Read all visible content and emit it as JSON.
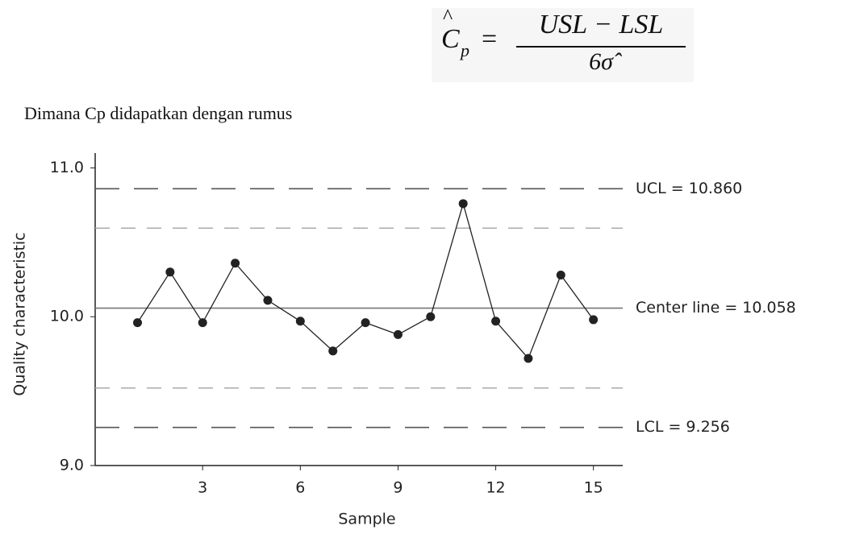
{
  "text": "Dimana Cp didapatkan dengan rumus",
  "formula": {
    "lhs": "C",
    "lhs_hat": "^",
    "lhs_sub": "p",
    "equals": "=",
    "numerator": "USL − LSL",
    "denominator": "6σ̂"
  },
  "chart_data": {
    "type": "control",
    "xlabel": "Sample",
    "ylabel": "Quality characteristic",
    "x": [
      1,
      2,
      3,
      4,
      5,
      6,
      7,
      8,
      9,
      10,
      11,
      12,
      13,
      14,
      15
    ],
    "values": [
      9.96,
      10.3,
      9.96,
      10.36,
      10.11,
      9.97,
      9.77,
      9.96,
      9.88,
      10.0,
      10.76,
      9.97,
      9.72,
      10.28,
      9.98
    ],
    "color": "#222222",
    "xlim": [
      -0.3,
      15.9
    ],
    "xticks": [
      3,
      6,
      9,
      12,
      15
    ],
    "ylim": [
      9.0,
      11.1
    ],
    "yticks": [
      {
        "value": 9,
        "label": "9.0"
      },
      {
        "value": 10,
        "label": "10.0"
      },
      {
        "value": 11,
        "label": "11.0"
      }
    ],
    "limits": [
      {
        "label": "UCL = 10.860",
        "value": 10.86,
        "style": "long-dash"
      },
      {
        "label": "Center line = 10.058",
        "value": 10.058,
        "style": "solid"
      },
      {
        "label": "LCL = 9.256",
        "value": 9.256,
        "style": "long-dash"
      }
    ],
    "warning_limits": [
      10.595,
      9.521
    ]
  }
}
